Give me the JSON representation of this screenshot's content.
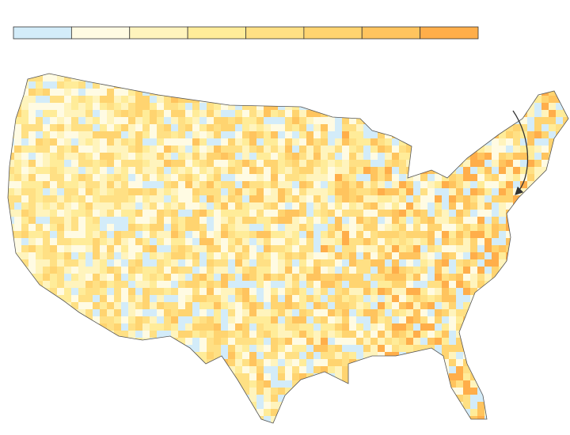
{
  "legend": {
    "colors": [
      "#d3ecf9",
      "#fffbe3",
      "#fff4bd",
      "#ffec99",
      "#ffe084",
      "#ffd470",
      "#ffc45e",
      "#ffae4a"
    ]
  }
}
